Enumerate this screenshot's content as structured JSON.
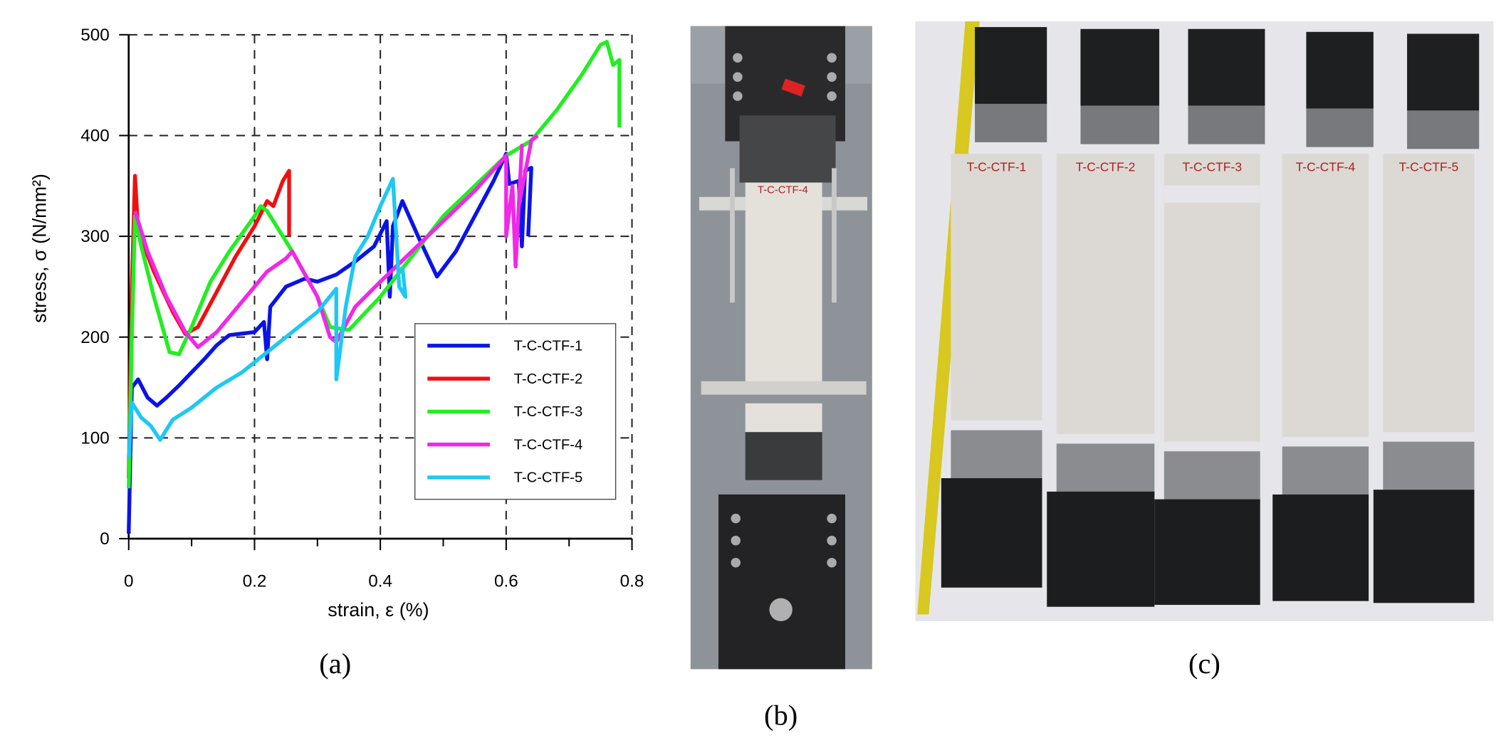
{
  "chart_data": {
    "type": "line",
    "xlabel": "strain, ε (%)",
    "ylabel": "stress, σ (N/mm²)",
    "xlim": [
      0,
      0.8
    ],
    "ylim": [
      0,
      500
    ],
    "xticks": [
      0,
      0.2,
      0.4,
      0.6,
      0.8
    ],
    "xminorticks": [
      0.1,
      0.3,
      0.5,
      0.7
    ],
    "yticks": [
      0,
      100,
      200,
      300,
      400,
      500
    ],
    "grid": true,
    "legend": "lower right",
    "series": [
      {
        "name": "T-C-CTF-1",
        "color": "#0a14e6",
        "x": [
          0,
          0.005,
          0.015,
          0.03,
          0.045,
          0.06,
          0.08,
          0.1,
          0.12,
          0.14,
          0.16,
          0.2,
          0.215,
          0.22,
          0.225,
          0.25,
          0.28,
          0.3,
          0.33,
          0.36,
          0.39,
          0.41,
          0.415,
          0.42,
          0.435,
          0.46,
          0.49,
          0.52,
          0.55,
          0.58,
          0.6,
          0.605,
          0.62,
          0.625,
          0.63,
          0.64,
          0.635
        ],
        "values": [
          5,
          150,
          158,
          140,
          132,
          140,
          152,
          165,
          178,
          192,
          202,
          205,
          215,
          178,
          230,
          250,
          258,
          255,
          262,
          275,
          290,
          315,
          240,
          310,
          335,
          300,
          260,
          285,
          320,
          355,
          382,
          352,
          355,
          290,
          365,
          368,
          300
        ]
      },
      {
        "name": "T-C-CTF-2",
        "color": "#f01010",
        "x": [
          0,
          0.005,
          0.01,
          0.015,
          0.04,
          0.07,
          0.09,
          0.11,
          0.14,
          0.17,
          0.2,
          0.22,
          0.23,
          0.245,
          0.255,
          0.255
        ],
        "values": [
          60,
          250,
          360,
          305,
          265,
          225,
          203,
          210,
          245,
          280,
          310,
          335,
          330,
          355,
          365,
          300
        ]
      },
      {
        "name": "T-C-CTF-3",
        "color": "#22ee22",
        "x": [
          0,
          0.005,
          0.01,
          0.02,
          0.04,
          0.065,
          0.08,
          0.1,
          0.13,
          0.16,
          0.2,
          0.21,
          0.22,
          0.26,
          0.3,
          0.32,
          0.35,
          0.4,
          0.45,
          0.5,
          0.55,
          0.6,
          0.64,
          0.68,
          0.72,
          0.75,
          0.76,
          0.77,
          0.78,
          0.78
        ],
        "values": [
          50,
          200,
          320,
          290,
          240,
          185,
          183,
          210,
          255,
          285,
          320,
          330,
          325,
          285,
          240,
          210,
          207,
          240,
          280,
          320,
          350,
          380,
          395,
          425,
          460,
          490,
          493,
          470,
          475,
          408
        ]
      },
      {
        "name": "T-C-CTF-4",
        "color": "#f028e8",
        "x": [
          0.01,
          0.03,
          0.06,
          0.09,
          0.11,
          0.14,
          0.18,
          0.22,
          0.25,
          0.26,
          0.3,
          0.32,
          0.33,
          0.36,
          0.4,
          0.45,
          0.5,
          0.55,
          0.6,
          0.6,
          0.61,
          0.615,
          0.625,
          0.62,
          0.64,
          0.65
        ],
        "values": [
          325,
          285,
          240,
          205,
          190,
          205,
          235,
          265,
          278,
          285,
          240,
          200,
          195,
          230,
          255,
          285,
          315,
          345,
          380,
          300,
          350,
          270,
          390,
          330,
          395,
          400
        ]
      },
      {
        "name": "T-C-CTF-5",
        "color": "#1ec8f5",
        "x": [
          0,
          0.005,
          0.02,
          0.035,
          0.05,
          0.07,
          0.1,
          0.14,
          0.18,
          0.22,
          0.25,
          0.3,
          0.33,
          0.33,
          0.345,
          0.36,
          0.38,
          0.4,
          0.42,
          0.43,
          0.44,
          0.435
        ],
        "values": [
          80,
          135,
          120,
          112,
          98,
          118,
          130,
          150,
          165,
          185,
          200,
          225,
          248,
          158,
          230,
          280,
          300,
          330,
          357,
          250,
          240,
          270
        ]
      }
    ]
  },
  "panel_labels": [
    "(a)",
    "(b)",
    "(c)"
  ],
  "photo_b_label": "T-C-CTF-4",
  "photo_c_labels": [
    "T-C-CTF-1",
    "T-C-CTF-2",
    "T-C-CTF-3",
    "T-C-CTF-4",
    "T-C-CTF-5"
  ]
}
